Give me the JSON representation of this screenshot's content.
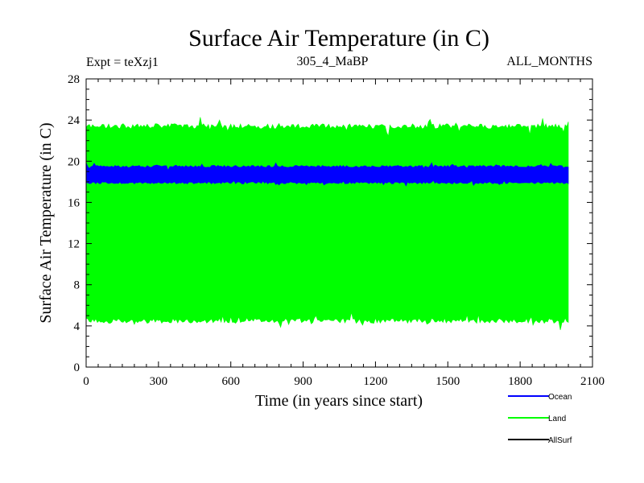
{
  "chart_data": {
    "type": "area",
    "title": "Surface Air Temperature (in C)",
    "subtitle_left": "Expt = teXzj1",
    "subtitle_center": "305_4_MaBP",
    "subtitle_right": "ALL_MONTHS",
    "xlabel": "Time (in years since start)",
    "ylabel": "Surface Air Temperature (in C)",
    "xlim": [
      0,
      2100
    ],
    "ylim": [
      0,
      28
    ],
    "x_ticks": [
      0,
      300,
      600,
      900,
      1200,
      1500,
      1800,
      2100
    ],
    "x_tick_labels": [
      "0",
      "300",
      "600",
      "900",
      "1200",
      "1500",
      "1800",
      "2100"
    ],
    "y_ticks": [
      0,
      4,
      8,
      12,
      16,
      20,
      24,
      28
    ],
    "y_tick_labels": [
      "0",
      "4",
      "8",
      "12",
      "16",
      "20",
      "24",
      "28"
    ],
    "legend_position": "bottom-right",
    "series": [
      {
        "name": "Land",
        "color": "#00ff00",
        "x_range": [
          0,
          2000
        ],
        "band_min": 4.5,
        "band_max": 23.4,
        "noise": 0.5
      },
      {
        "name": "Ocean",
        "color": "#0000ff",
        "x_range": [
          0,
          2000
        ],
        "band_min": 17.9,
        "band_max": 19.5,
        "noise": 0.2
      },
      {
        "name": "AllSurf",
        "color": "#000000",
        "x_range": [
          0,
          2000
        ],
        "band_min": null,
        "band_max": null,
        "noise": 0
      }
    ],
    "legend": [
      {
        "name": "Ocean",
        "color": "#0000ff"
      },
      {
        "name": "Land",
        "color": "#00ff00"
      },
      {
        "name": "AllSurf",
        "color": "#000000"
      }
    ]
  }
}
